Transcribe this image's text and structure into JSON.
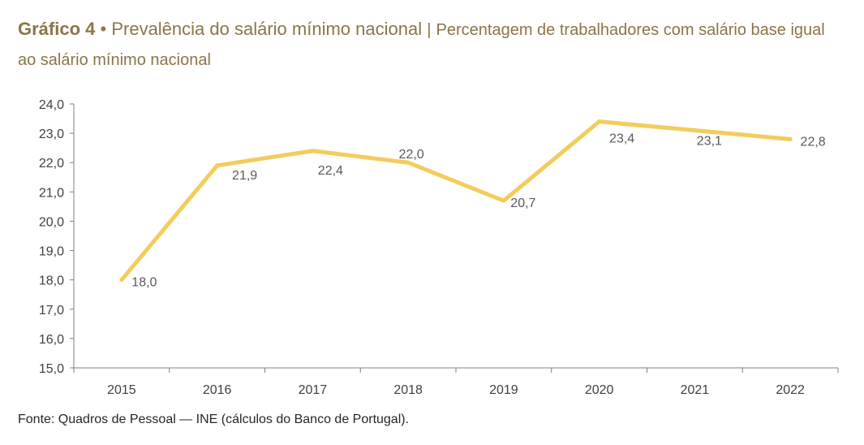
{
  "header": {
    "label": "Gráfico 4",
    "bullet": "•",
    "title": "Prevalência do salário mínimo nacional",
    "separator": "|",
    "subtitle": "Percentagem de trabalhadores com salário base igual ao salário mínimo nacional"
  },
  "colors": {
    "line": "#F2CD5C",
    "title": "#8B7548",
    "axis": "#7F7F7F"
  },
  "chart_data": {
    "type": "line",
    "title": "Prevalência do salário mínimo nacional",
    "xlabel": "",
    "ylabel": "",
    "categories": [
      "2015",
      "2016",
      "2017",
      "2018",
      "2019",
      "2020",
      "2021",
      "2022"
    ],
    "series": [
      {
        "name": "Percentagem de trabalhadores com salário base igual ao salário mínimo nacional",
        "values": [
          18.0,
          21.9,
          22.4,
          22.0,
          20.7,
          23.4,
          23.1,
          22.8
        ]
      }
    ],
    "data_labels": [
      "18,0",
      "21,9",
      "22,4",
      "22,0",
      "20,7",
      "23,4",
      "23,1",
      "22,8"
    ],
    "ylim": [
      15.0,
      24.0
    ],
    "yticks": [
      "15,0",
      "16,0",
      "17,0",
      "18,0",
      "19,0",
      "20,0",
      "21,0",
      "22,0",
      "23,0",
      "24,0"
    ],
    "grid": false,
    "legend": "none"
  },
  "footer": {
    "source": "Fonte: Quadros de Pessoal — INE (cálculos do Banco de Portugal)."
  }
}
